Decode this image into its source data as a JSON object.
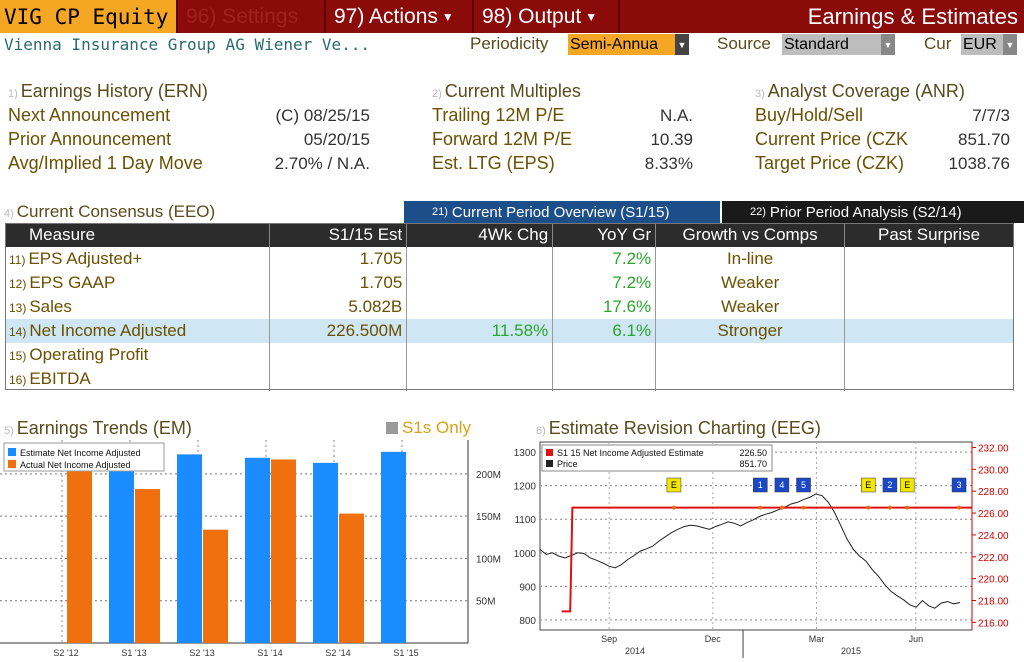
{
  "topbar": {
    "ticker": "VIG CP Equity",
    "settings": "96) Settings",
    "actions": "97) Actions",
    "output": "98) Output",
    "title": "Earnings & Estimates"
  },
  "subbar": {
    "company": "Vienna Insurance Group AG Wiener Ve...",
    "periodicity_label": "Periodicity",
    "periodicity_value": "Semi-Annua",
    "source_label": "Source",
    "source_value": "Standard",
    "cur_label": "Cur",
    "cur_value": "EUR"
  },
  "earnings_history": {
    "num": "1)",
    "title": "Earnings History (ERN)",
    "rows": [
      {
        "label": "Next Announcement",
        "value": "(C)  08/25/15"
      },
      {
        "label": "Prior Announcement",
        "value": "05/20/15"
      },
      {
        "label": "Avg/Implied 1 Day Move",
        "value": "2.70% / N.A."
      }
    ]
  },
  "current_multiples": {
    "num": "2)",
    "title": "Current Multiples",
    "rows": [
      {
        "label": "Trailing 12M P/E",
        "value": "N.A."
      },
      {
        "label": "Forward 12M P/E",
        "value": "10.39"
      },
      {
        "label": "Est. LTG (EPS)",
        "value": "8.33%"
      }
    ]
  },
  "analyst_coverage": {
    "num": "3)",
    "title": "Analyst Coverage (ANR)",
    "rows": [
      {
        "label": "Buy/Hold/Sell",
        "value": "7/7/3"
      },
      {
        "label": "Current Price (CZK",
        "value": "851.70"
      },
      {
        "label": "Target Price (CZK)",
        "value": "1038.76"
      }
    ]
  },
  "consensus": {
    "num": "4)",
    "title": "Current Consensus (EEO)",
    "tab_current_num": "21)",
    "tab_current": "Current Period Overview (S1/15)",
    "tab_prior_num": "22)",
    "tab_prior": "Prior Period Analysis (S2/14)",
    "headers": [
      "Measure",
      "S1/15 Est",
      "4Wk Chg",
      "YoY Gr",
      "Growth vs Comps",
      "Past Surprise"
    ],
    "rows": [
      {
        "n": "11)",
        "measure": "EPS Adjusted+",
        "est": "1.705",
        "chg": "",
        "yoy": "7.2%",
        "gr": "In-line",
        "ps": ""
      },
      {
        "n": "12)",
        "measure": "EPS GAAP",
        "est": "1.705",
        "chg": "",
        "yoy": "7.2%",
        "gr": "Weaker",
        "ps": ""
      },
      {
        "n": "13)",
        "measure": "Sales",
        "est": "5.082B",
        "chg": "",
        "yoy": "17.6%",
        "gr": "Weaker",
        "ps": ""
      },
      {
        "n": "14)",
        "measure": "Net Income Adjusted",
        "est": "226.500M",
        "chg": "11.58%",
        "yoy": "6.1%",
        "gr": "Stronger",
        "ps": ""
      },
      {
        "n": "15)",
        "measure": "Operating Profit",
        "est": "",
        "chg": "",
        "yoy": "",
        "gr": "",
        "ps": ""
      },
      {
        "n": "16)",
        "measure": "EBITDA",
        "est": "",
        "chg": "",
        "yoy": "",
        "gr": "",
        "ps": ""
      }
    ]
  },
  "trends": {
    "num": "5)",
    "title": "Earnings Trends (EM)",
    "s1only": "S1s Only"
  },
  "revision": {
    "num": "6)",
    "title": "Estimate Revision Charting (EEG)"
  },
  "colors": {
    "estimate": "#1a8cff",
    "actual": "#f07010",
    "price_line": "#222222",
    "estimate_line": "#e01010"
  },
  "chart_data": [
    {
      "type": "bar",
      "categories": [
        "S2 '12",
        "S1 '13",
        "S2 '13",
        "S1 '14",
        "S2 '14",
        "S1 '15"
      ],
      "series": [
        {
          "name": "Estimate Net Income Adjusted",
          "values": [
            null,
            210,
            223,
            219,
            213,
            226
          ]
        },
        {
          "name": "Actual Net Income Adjusted",
          "values": [
            210,
            182,
            134,
            217,
            153,
            null
          ]
        }
      ],
      "y_ticks": [
        "50M",
        "100M",
        "150M",
        "200M"
      ],
      "ylim": [
        0,
        240
      ]
    },
    {
      "type": "line",
      "x_ticks": [
        "Sep",
        "Dec",
        "Mar",
        "Jun"
      ],
      "x_years": [
        "2014",
        "2015"
      ],
      "legend": [
        {
          "name": "S1 15 Net Income Adjusted Estimate",
          "value": "226.50"
        },
        {
          "name": "Price",
          "value": "851.70"
        }
      ],
      "left_ticks": [
        "800",
        "900",
        "1000",
        "1100",
        "1200",
        "1300"
      ],
      "right_ticks": [
        "216.00",
        "218.00",
        "220.00",
        "222.00",
        "224.00",
        "226.00",
        "228.00",
        "230.00",
        "232.00"
      ],
      "left_ylim": [
        770,
        1330
      ],
      "right_ylim": [
        215.3,
        232.5
      ],
      "price_series": [
        1010,
        995,
        1000,
        990,
        985,
        992,
        1000,
        998,
        985,
        978,
        970,
        960,
        955,
        965,
        980,
        992,
        1005,
        1012,
        1020,
        1035,
        1048,
        1060,
        1070,
        1078,
        1082,
        1080,
        1075,
        1070,
        1078,
        1085,
        1092,
        1088,
        1080,
        1090,
        1098,
        1108,
        1115,
        1120,
        1128,
        1135,
        1145,
        1150,
        1158,
        1165,
        1175,
        1170,
        1150,
        1120,
        1080,
        1040,
        1010,
        990,
        975,
        950,
        930,
        905,
        885,
        872,
        860,
        845,
        838,
        858,
        842,
        835,
        850,
        855,
        848,
        852
      ],
      "estimate_series": [
        {
          "x": 0.05,
          "y": 217.0
        },
        {
          "x": 0.07,
          "y": 217.0
        },
        {
          "x": 0.075,
          "y": 226.5
        },
        {
          "x": 1.0,
          "y": 226.5
        }
      ],
      "markers": [
        "E",
        "1",
        "4",
        "5",
        "E",
        "2",
        "E",
        "3"
      ]
    }
  ]
}
